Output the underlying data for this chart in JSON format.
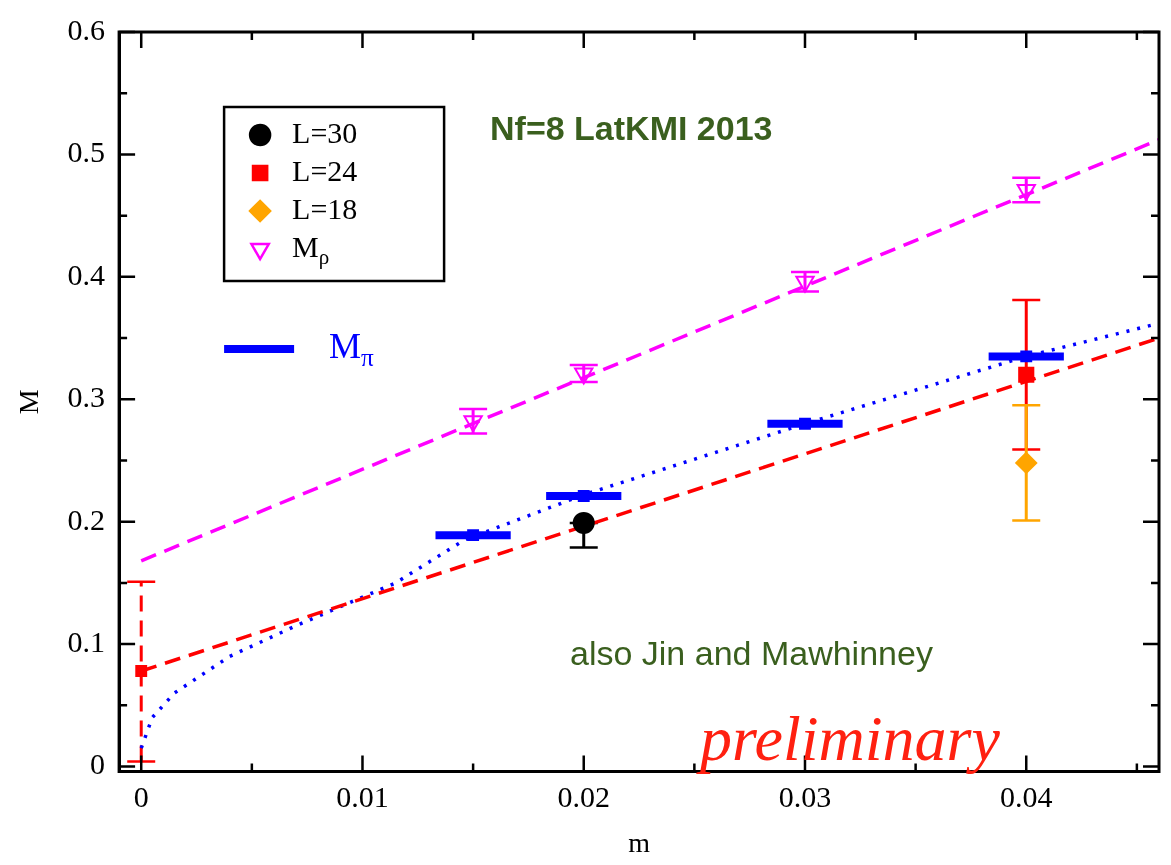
{
  "chart_data": {
    "type": "scatter",
    "xlabel": "m",
    "ylabel": "M",
    "xlim": [
      -0.001,
      0.046
    ],
    "ylim": [
      -0.004,
      0.6
    ],
    "xticks": [
      0,
      0.01,
      0.02,
      0.03,
      0.04
    ],
    "yticks": [
      0,
      0.1,
      0.2,
      0.3,
      0.4,
      0.5,
      0.6
    ],
    "grid": false,
    "legend": "top left",
    "annotations": [
      "Nf=8 LatKMI 2013",
      "also Jin and Mawhinney",
      "preliminary"
    ],
    "series": [
      {
        "name": "L=30",
        "type": "scatter",
        "marker": "circle",
        "color": "#000000",
        "x": [
          0.02
        ],
        "values": [
          0.199
        ],
        "errors": [
          [
            0.179,
            0.199
          ]
        ]
      },
      {
        "name": "L=24",
        "type": "scatter",
        "marker": "square",
        "color": "#ff0000",
        "x": [
          0.04
        ],
        "values": [
          0.32
        ],
        "errors": [
          [
            0.259,
            0.381
          ]
        ]
      },
      {
        "name": "L=18",
        "type": "scatter",
        "marker": "diamond",
        "color": "#ffa500",
        "x": [
          0.04
        ],
        "values": [
          0.248
        ],
        "errors": [
          [
            0.201,
            0.295
          ]
        ]
      },
      {
        "name": "M$_{ρ}$",
        "type": "scatter",
        "marker": "triangle",
        "color": "#ff00ff",
        "x": [
          0.015,
          0.02,
          0.03,
          0.04
        ],
        "values": [
          0.282,
          0.321,
          0.396,
          0.471
        ],
        "errors": [
          0.01,
          0.007,
          0.008,
          0.01
        ]
      },
      {
        "name": "M$_{π}$",
        "type": "scatter",
        "marker": "square",
        "color": "#0000ff",
        "x": [
          0.015,
          0.02,
          0.03,
          0.04
        ],
        "values": [
          0.189,
          0.221,
          0.28,
          0.335
        ],
        "xerrors": [
          0.0017,
          0.0017,
          0.0017,
          0.0017
        ]
      },
      {
        "type": "line",
        "line_style": "dashed",
        "color": "#ff00ff",
        "x": [
          0,
          0.046
        ],
        "values": [
          0.168,
          0.512
        ]
      },
      {
        "type": "line",
        "line_style": "dashed",
        "color": "#ff0000",
        "x": [
          0,
          0.046
        ],
        "values": [
          0.078,
          0.35
        ]
      },
      {
        "type": "line",
        "line_style": "dotted",
        "color": "#0000ff",
        "x": [
          0,
          0.0005,
          0.0015,
          0.004,
          0.007,
          0.0115,
          0.0146,
          0.02,
          0.03,
          0.04,
          0.046
        ],
        "values": [
          0.015,
          0.04,
          0.06,
          0.09,
          0.115,
          0.15,
          0.185,
          0.222,
          0.28,
          0.335,
          0.362
        ]
      },
      {
        "type": "scatter",
        "marker": "square",
        "line_style": "dashed",
        "color": "#ff0000",
        "x": [
          0
        ],
        "values": [
          0.078
        ],
        "errors": [
          [
            0.004,
            0.151
          ]
        ]
      }
    ]
  }
}
